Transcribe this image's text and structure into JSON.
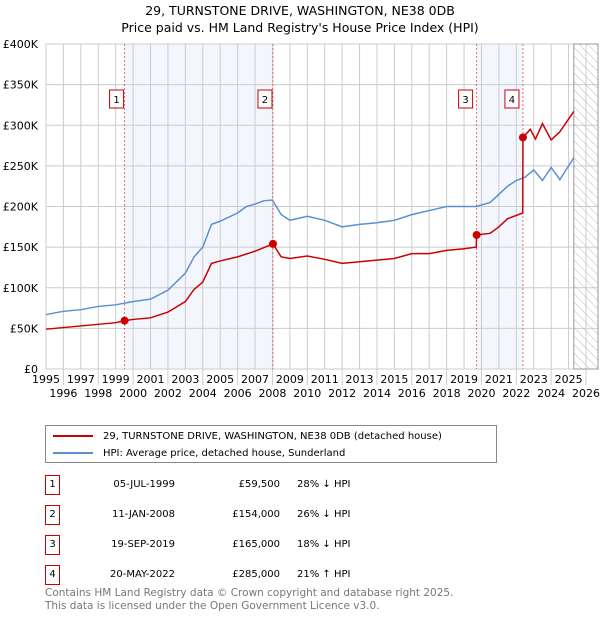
{
  "chart_data": {
    "type": "line",
    "title": "29, TURNSTONE DRIVE, WASHINGTON, NE38 0DB",
    "subtitle": "Price paid vs. HM Land Registry's House Price Index (HPI)",
    "xlim": [
      1995,
      2026
    ],
    "ylim": [
      0,
      400000
    ],
    "x_ticks": [
      "1995",
      "1996",
      "1997",
      "1998",
      "1999",
      "2000",
      "2001",
      "2002",
      "2003",
      "2004",
      "2005",
      "2006",
      "2007",
      "2008",
      "2009",
      "2010",
      "2011",
      "2012",
      "2013",
      "2014",
      "2015",
      "2016",
      "2017",
      "2018",
      "2019",
      "2020",
      "2021",
      "2022",
      "2023",
      "2024",
      "2025",
      "2026"
    ],
    "y_ticks": [
      {
        "v": 0,
        "l": "£0"
      },
      {
        "v": 50000,
        "l": "£50K"
      },
      {
        "v": 100000,
        "l": "£100K"
      },
      {
        "v": 150000,
        "l": "£150K"
      },
      {
        "v": 200000,
        "l": "£200K"
      },
      {
        "v": 250000,
        "l": "£250K"
      },
      {
        "v": 300000,
        "l": "£300K"
      },
      {
        "v": 350000,
        "l": "£350K"
      },
      {
        "v": 400000,
        "l": "£400K"
      }
    ],
    "grid": true,
    "forecast_from": 2025.3,
    "series": [
      {
        "name": "29, TURNSTONE DRIVE, WASHINGTON, NE38 0DB (detached house)",
        "color": "#cc0000",
        "points": [
          [
            1995,
            49000
          ],
          [
            1996,
            51000
          ],
          [
            1997,
            53000
          ],
          [
            1998,
            55000
          ],
          [
            1999,
            57000
          ],
          [
            1999.51,
            59500
          ],
          [
            2000,
            61000
          ],
          [
            2001,
            63000
          ],
          [
            2002,
            70000
          ],
          [
            2003,
            83000
          ],
          [
            2003.5,
            98000
          ],
          [
            2004,
            107000
          ],
          [
            2004.5,
            130000
          ],
          [
            2005,
            133000
          ],
          [
            2006,
            138000
          ],
          [
            2007,
            145000
          ],
          [
            2008.03,
            154000
          ],
          [
            2008.5,
            138000
          ],
          [
            2009,
            136000
          ],
          [
            2010,
            139000
          ],
          [
            2011,
            135000
          ],
          [
            2012,
            130000
          ],
          [
            2013,
            132000
          ],
          [
            2014,
            134000
          ],
          [
            2015,
            136000
          ],
          [
            2016,
            142000
          ],
          [
            2017,
            142000
          ],
          [
            2018,
            146000
          ],
          [
            2019,
            148000
          ],
          [
            2019.7,
            150000
          ],
          [
            2019.72,
            165000
          ],
          [
            2020.5,
            167000
          ],
          [
            2021,
            175000
          ],
          [
            2021.5,
            185000
          ],
          [
            2022.37,
            192000
          ],
          [
            2022.38,
            285000
          ],
          [
            2022.8,
            295000
          ],
          [
            2023.1,
            283000
          ],
          [
            2023.5,
            302000
          ],
          [
            2024,
            282000
          ],
          [
            2024.5,
            292000
          ],
          [
            2025.3,
            317000
          ]
        ]
      },
      {
        "name": "HPI: Average price, detached house, Sunderland",
        "color": "#5b8fd0",
        "points": [
          [
            1995,
            67000
          ],
          [
            1996,
            71000
          ],
          [
            1997,
            73000
          ],
          [
            1998,
            77000
          ],
          [
            1999,
            79000
          ],
          [
            2000,
            83000
          ],
          [
            2001,
            86000
          ],
          [
            2002,
            97000
          ],
          [
            2003,
            118000
          ],
          [
            2003.5,
            138000
          ],
          [
            2004,
            150000
          ],
          [
            2004.5,
            178000
          ],
          [
            2005,
            182000
          ],
          [
            2006,
            192000
          ],
          [
            2006.5,
            200000
          ],
          [
            2007,
            203000
          ],
          [
            2007.5,
            207000
          ],
          [
            2008,
            208000
          ],
          [
            2008.5,
            190000
          ],
          [
            2009,
            183000
          ],
          [
            2010,
            188000
          ],
          [
            2011,
            183000
          ],
          [
            2012,
            175000
          ],
          [
            2013,
            178000
          ],
          [
            2014,
            180000
          ],
          [
            2015,
            183000
          ],
          [
            2016,
            190000
          ],
          [
            2017,
            195000
          ],
          [
            2018,
            200000
          ],
          [
            2019,
            200000
          ],
          [
            2019.7,
            200000
          ],
          [
            2020.5,
            205000
          ],
          [
            2021,
            215000
          ],
          [
            2021.5,
            225000
          ],
          [
            2022,
            232000
          ],
          [
            2022.5,
            236000
          ],
          [
            2023,
            245000
          ],
          [
            2023.5,
            232000
          ],
          [
            2024,
            248000
          ],
          [
            2024.5,
            233000
          ],
          [
            2025,
            250000
          ],
          [
            2025.3,
            260000
          ]
        ]
      }
    ],
    "sales": [
      {
        "n": "1",
        "x": 1999.51,
        "price": 59500,
        "date": "05-JUL-1999",
        "price_label": "£59,500",
        "hpi": "28% ↓ HPI"
      },
      {
        "n": "2",
        "x": 2008.03,
        "price": 154000,
        "date": "11-JAN-2008",
        "price_label": "£154,000",
        "hpi": "26% ↓ HPI"
      },
      {
        "n": "3",
        "x": 2019.72,
        "price": 165000,
        "date": "19-SEP-2019",
        "price_label": "£165,000",
        "hpi": "18% ↓ HPI"
      },
      {
        "n": "4",
        "x": 2022.38,
        "price": 285000,
        "date": "20-MAY-2022",
        "price_label": "£285,000",
        "hpi": "21% ↑ HPI"
      }
    ]
  },
  "footer": {
    "line1": "Contains HM Land Registry data © Crown copyright and database right 2025.",
    "line2": "This data is licensed under the Open Government Licence v3.0."
  }
}
